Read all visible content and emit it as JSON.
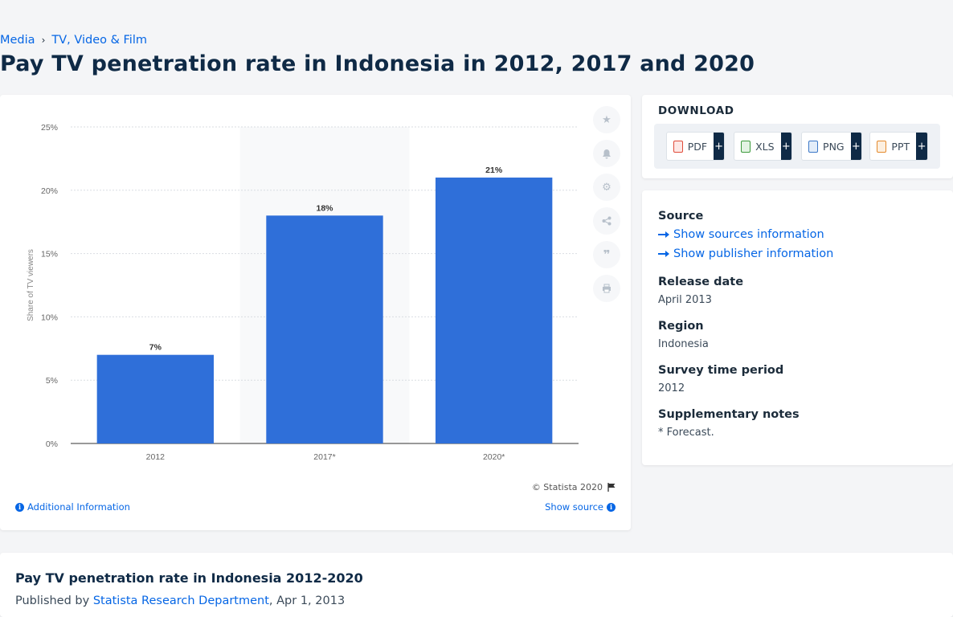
{
  "breadcrumb": {
    "items": [
      "Media",
      "TV, Video & Film"
    ]
  },
  "page_title": "Pay TV penetration rate in Indonesia in 2012, 2017 and 2020",
  "chart_data": {
    "type": "bar",
    "categories": [
      "2012",
      "2017*",
      "2020*"
    ],
    "values": [
      7,
      18,
      21
    ],
    "data_labels": [
      "7%",
      "18%",
      "21%"
    ],
    "ylabel": "Share of TV viewers",
    "ylim": [
      0,
      25
    ],
    "yticks": [
      0,
      5,
      10,
      15,
      20,
      25
    ],
    "ytick_labels": [
      "0%",
      "5%",
      "10%",
      "15%",
      "20%",
      "25%"
    ],
    "grid": true,
    "bar_color": "#2f6fd9",
    "highlight_band_color": "#f8f9fa"
  },
  "chart_footer": {
    "copyright": "© Statista 2020",
    "additional_info": "Additional Information",
    "show_source": "Show source"
  },
  "toolbar": {
    "icons": [
      "star-icon",
      "bell-icon",
      "gear-icon",
      "share-icon",
      "quote-icon",
      "print-icon"
    ]
  },
  "download": {
    "title": "DOWNLOAD",
    "formats": [
      {
        "label": "PDF",
        "color": "#e04b3a"
      },
      {
        "label": "XLS",
        "color": "#3c9a3c"
      },
      {
        "label": "PNG",
        "color": "#3b77c7"
      },
      {
        "label": "PPT",
        "color": "#e58a2c"
      }
    ],
    "plus": "+"
  },
  "info": {
    "source_label": "Source",
    "show_sources": "Show sources information",
    "show_publisher": "Show publisher information",
    "release_label": "Release date",
    "release_value": "April 2013",
    "region_label": "Region",
    "region_value": "Indonesia",
    "period_label": "Survey time period",
    "period_value": "2012",
    "notes_label": "Supplementary notes",
    "notes_value": "* Forecast."
  },
  "bottom": {
    "title": "Pay TV penetration rate in Indonesia 2012-2020",
    "published_by": "Published by",
    "author": "Statista Research Department",
    "date": ", Apr 1, 2013"
  }
}
